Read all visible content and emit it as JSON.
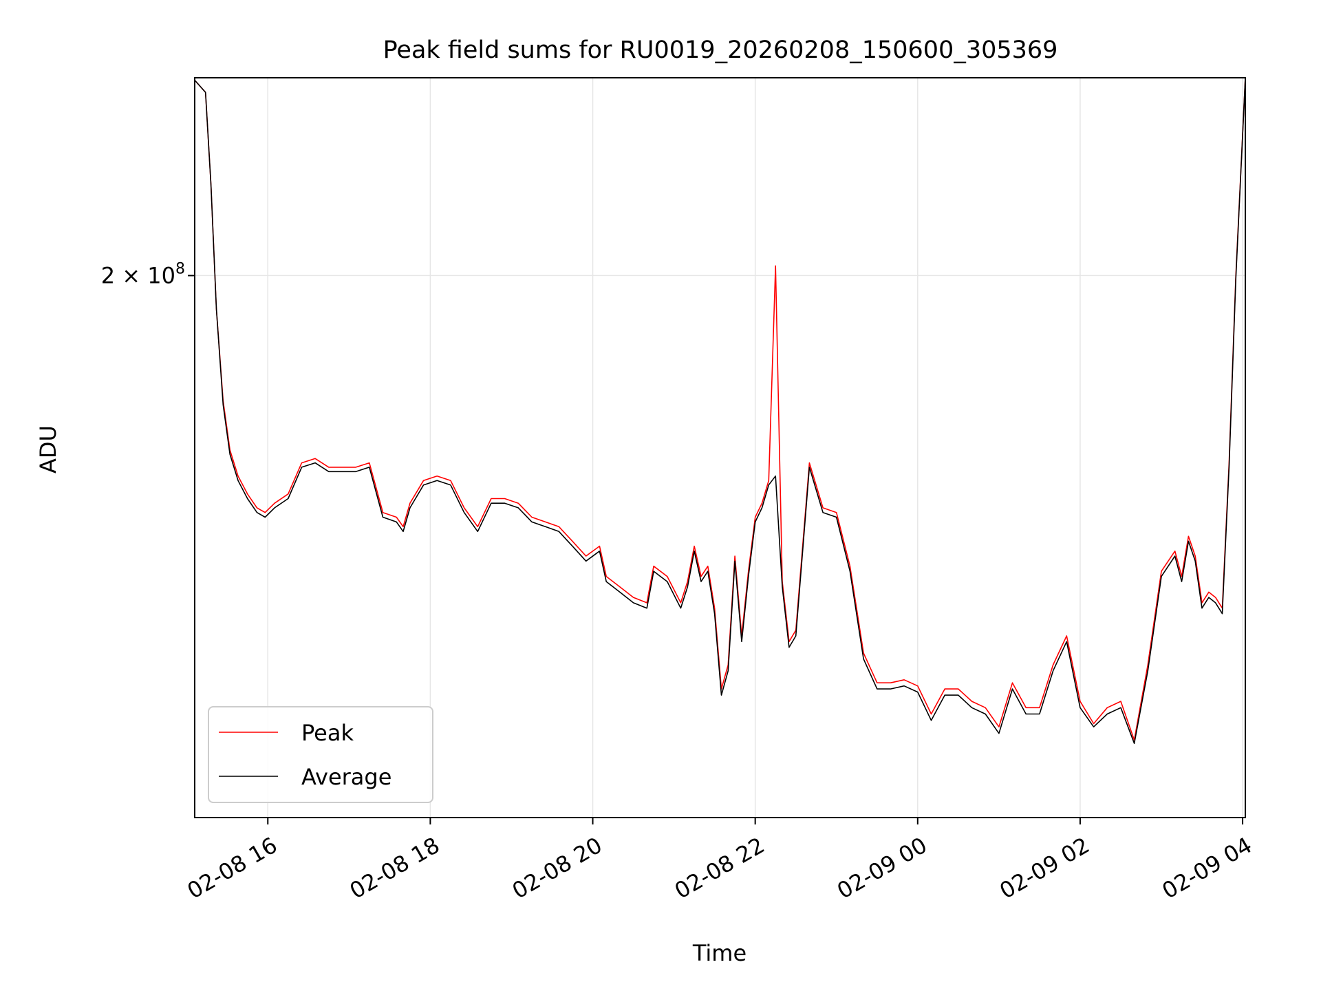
{
  "chart_data": {
    "type": "line",
    "title": "Peak field sums for RU0019_20260208_150600_305369",
    "xlabel": "Time",
    "ylabel": "ADU",
    "y_scale": "log",
    "grid": true,
    "legend_position": "lower-left",
    "xlim": [
      "2026-02-08 15:06",
      "2026-02-09 04:02"
    ],
    "ylim": [
      87000000,
      271000000
    ],
    "x_ticks": [
      {
        "value": "2026-02-08 16:00",
        "label": "02-08 16"
      },
      {
        "value": "2026-02-08 18:00",
        "label": "02-08 18"
      },
      {
        "value": "2026-02-08 20:00",
        "label": "02-08 20"
      },
      {
        "value": "2026-02-08 22:00",
        "label": "02-08 22"
      },
      {
        "value": "2026-02-09 00:00",
        "label": "02-09 00"
      },
      {
        "value": "2026-02-09 02:00",
        "label": "02-09 02"
      },
      {
        "value": "2026-02-09 04:00",
        "label": "02-09 04"
      }
    ],
    "y_ticks": [
      {
        "value": 200000000,
        "label_base": "2 × 10",
        "label_exp": "8"
      }
    ],
    "x": [
      "2026-02-08 15:06",
      "2026-02-08 15:14",
      "2026-02-08 15:18",
      "2026-02-08 15:22",
      "2026-02-08 15:27",
      "2026-02-08 15:32",
      "2026-02-08 15:38",
      "2026-02-08 15:45",
      "2026-02-08 15:52",
      "2026-02-08 15:58",
      "2026-02-08 16:05",
      "2026-02-08 16:15",
      "2026-02-08 16:25",
      "2026-02-08 16:35",
      "2026-02-08 16:45",
      "2026-02-08 16:55",
      "2026-02-08 17:05",
      "2026-02-08 17:15",
      "2026-02-08 17:25",
      "2026-02-08 17:35",
      "2026-02-08 17:40",
      "2026-02-08 17:45",
      "2026-02-08 17:55",
      "2026-02-08 18:05",
      "2026-02-08 18:15",
      "2026-02-08 18:25",
      "2026-02-08 18:35",
      "2026-02-08 18:45",
      "2026-02-08 18:55",
      "2026-02-08 19:05",
      "2026-02-08 19:15",
      "2026-02-08 19:25",
      "2026-02-08 19:35",
      "2026-02-08 19:45",
      "2026-02-08 19:55",
      "2026-02-08 20:05",
      "2026-02-08 20:10",
      "2026-02-08 20:20",
      "2026-02-08 20:30",
      "2026-02-08 20:40",
      "2026-02-08 20:45",
      "2026-02-08 20:55",
      "2026-02-08 21:05",
      "2026-02-08 21:10",
      "2026-02-08 21:15",
      "2026-02-08 21:20",
      "2026-02-08 21:25",
      "2026-02-08 21:30",
      "2026-02-08 21:35",
      "2026-02-08 21:40",
      "2026-02-08 21:45",
      "2026-02-08 21:50",
      "2026-02-08 21:55",
      "2026-02-08 22:00",
      "2026-02-08 22:05",
      "2026-02-08 22:10",
      "2026-02-08 22:15",
      "2026-02-08 22:20",
      "2026-02-08 22:25",
      "2026-02-08 22:30",
      "2026-02-08 22:40",
      "2026-02-08 22:50",
      "2026-02-08 23:00",
      "2026-02-08 23:10",
      "2026-02-08 23:20",
      "2026-02-08 23:30",
      "2026-02-08 23:40",
      "2026-02-08 23:50",
      "2026-02-09 00:00",
      "2026-02-09 00:10",
      "2026-02-09 00:20",
      "2026-02-09 00:30",
      "2026-02-09 00:40",
      "2026-02-09 00:50",
      "2026-02-09 01:00",
      "2026-02-09 01:10",
      "2026-02-09 01:20",
      "2026-02-09 01:30",
      "2026-02-09 01:40",
      "2026-02-09 01:50",
      "2026-02-09 02:00",
      "2026-02-09 02:10",
      "2026-02-09 02:20",
      "2026-02-09 02:30",
      "2026-02-09 02:40",
      "2026-02-09 02:50",
      "2026-02-09 03:00",
      "2026-02-09 03:10",
      "2026-02-09 03:15",
      "2026-02-09 03:20",
      "2026-02-09 03:25",
      "2026-02-09 03:30",
      "2026-02-09 03:35",
      "2026-02-09 03:40",
      "2026-02-09 03:45",
      "2026-02-09 03:50",
      "2026-02-09 03:55",
      "2026-02-09 04:02"
    ],
    "series": [
      {
        "name": "Peak",
        "color": "#ff0000",
        "values": [
          270000000,
          265000000,
          230000000,
          190000000,
          165000000,
          153000000,
          147000000,
          143000000,
          140000000,
          139000000,
          141000000,
          143000000,
          150000000,
          151000000,
          149000000,
          149000000,
          149000000,
          150000000,
          139000000,
          138000000,
          136000000,
          141000000,
          146000000,
          147000000,
          146000000,
          140000000,
          136000000,
          142000000,
          142000000,
          141000000,
          138000000,
          137000000,
          136000000,
          133000000,
          130000000,
          132000000,
          126000000,
          124000000,
          122000000,
          121000000,
          128000000,
          126000000,
          121000000,
          125000000,
          132000000,
          126000000,
          128000000,
          120000000,
          106000000,
          110000000,
          130000000,
          115000000,
          127000000,
          138000000,
          141000000,
          146000000,
          203000000,
          125000000,
          114000000,
          116000000,
          150000000,
          140000000,
          139000000,
          128000000,
          112000000,
          107000000,
          107000000,
          107500000,
          106500000,
          102000000,
          106000000,
          106000000,
          104000000,
          103000000,
          100000000,
          107000000,
          103000000,
          103000000,
          110000000,
          115000000,
          104000000,
          100500000,
          103000000,
          104000000,
          98000000,
          110000000,
          127000000,
          131000000,
          126000000,
          134000000,
          130000000,
          121000000,
          123000000,
          122000000,
          120000000,
          150000000,
          200000000,
          271000000
        ]
      },
      {
        "name": "Average",
        "color": "#000000",
        "values": [
          270000000,
          265000000,
          230000000,
          190000000,
          164000000,
          152000000,
          146000000,
          142000000,
          139000000,
          138000000,
          140000000,
          142000000,
          149000000,
          150000000,
          148000000,
          148000000,
          148000000,
          149000000,
          138000000,
          137000000,
          135000000,
          140000000,
          145000000,
          146000000,
          145000000,
          139000000,
          135000000,
          141000000,
          141000000,
          140000000,
          137000000,
          136000000,
          135000000,
          132000000,
          129000000,
          131000000,
          125000000,
          123000000,
          121000000,
          120000000,
          127000000,
          125000000,
          120000000,
          124000000,
          131000000,
          125000000,
          127000000,
          119000000,
          105000000,
          109000000,
          129000000,
          114000000,
          126000000,
          137000000,
          140000000,
          145000000,
          147000000,
          124000000,
          113000000,
          115000000,
          149000000,
          139000000,
          138000000,
          127000000,
          111000000,
          106000000,
          106000000,
          106500000,
          105500000,
          101000000,
          105000000,
          105000000,
          103000000,
          102000000,
          99000000,
          106000000,
          102000000,
          102000000,
          109000000,
          114000000,
          103000000,
          100000000,
          102000000,
          103000000,
          97500000,
          109000000,
          126000000,
          130000000,
          125000000,
          133000000,
          129000000,
          120000000,
          122000000,
          121000000,
          119000000,
          149000000,
          199000000,
          271000000
        ]
      }
    ]
  }
}
